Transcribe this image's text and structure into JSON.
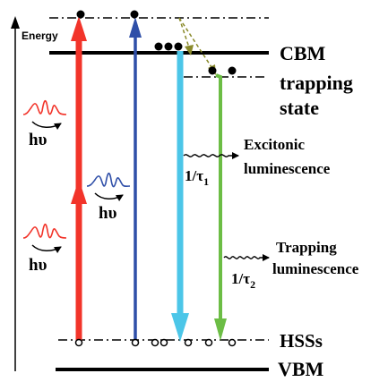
{
  "labels": {
    "energy": "Energy",
    "cbm": "CBM",
    "trapping_state_line1": "trapping",
    "trapping_state_line2": "state",
    "hssss": "HSSs",
    "vbm": "VBM",
    "photon_1": "hυ",
    "photon_2": "hυ",
    "photon_3": "hυ",
    "excitonic_line1": "Excitonic",
    "excitonic_line2": "luminescence",
    "trapping_lum_line1": "Trapping",
    "trapping_lum_line2": "luminescence",
    "rate_1_prefix": "1/τ",
    "rate_1_sub": "1",
    "rate_2_prefix": "1/τ",
    "rate_2_sub": "2"
  },
  "colors": {
    "excitation_red": "#f2342a",
    "excitation_blue": "#2f4fa8",
    "excitonic_cyan": "#4cc6e8",
    "trapping_green": "#6cbd45",
    "relaxation_olive": "#8a8a2a",
    "text": "#000000"
  }
}
